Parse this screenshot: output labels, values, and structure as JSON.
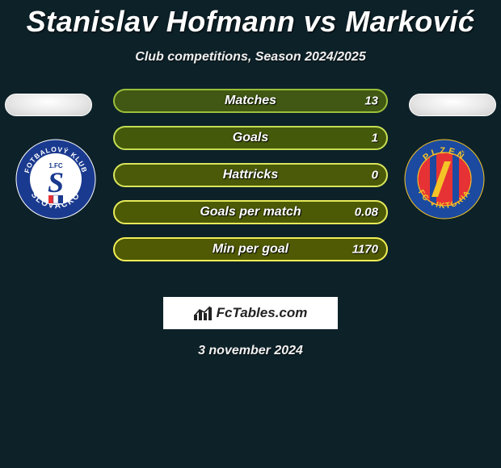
{
  "title": "Stanislav Hofmann vs Marković",
  "subtitle": "Club competitions, Season 2024/2025",
  "date": "3 november 2024",
  "brand": "FcTables.com",
  "background_color": "#0d2128",
  "title_color": "#ffffff",
  "title_fontsize": 36,
  "subtitle_fontsize": 16,
  "player_left": {
    "pill_fill": "#e8e8e8",
    "crest": {
      "outer_ring": "#1a3a8f",
      "ring_text_color": "#ffffff",
      "ring_text_top": "FOTBALOVÝ KLUB",
      "ring_text_bottom": "SLOVÁCKO",
      "inner_bg": "#ffffff",
      "letter": "S",
      "letter_color": "#1a3a8f",
      "sub_text": "1.FC",
      "stripe_colors": [
        "#e63235",
        "#ffffff",
        "#1a3a8f"
      ]
    }
  },
  "player_right": {
    "pill_fill": "#e8e8e8",
    "crest": {
      "outer_ring": "#1c4aa0",
      "ring_text_color": "#f4c426",
      "ring_text_top": "PLZEŇ",
      "ring_text_bottom": "FC VIKTORIA",
      "inner_bg": "#e63235",
      "stripes": "#1c4aa0",
      "accent": "#f4c426"
    }
  },
  "bars": {
    "height": 30,
    "border_radius": 15,
    "gap": 16,
    "label_color": "#ffffff",
    "label_fontsize": 16,
    "value_fontsize": 15,
    "rows": [
      {
        "label": "Matches",
        "left": "",
        "right": "13",
        "fill": "#405813",
        "border": "#9bbf3a"
      },
      {
        "label": "Goals",
        "left": "",
        "right": "1",
        "fill": "#45590a",
        "border": "#c4de53"
      },
      {
        "label": "Hattricks",
        "left": "",
        "right": "0",
        "fill": "#4a5a08",
        "border": "#d9e65b"
      },
      {
        "label": "Goals per match",
        "left": "",
        "right": "0.08",
        "fill": "#4c5a06",
        "border": "#e7ea5a"
      },
      {
        "label": "Min per goal",
        "left": "",
        "right": "1170",
        "fill": "#505a04",
        "border": "#f2ee57"
      }
    ]
  },
  "brand_box": {
    "border_color": "#ffffff",
    "bg": "#ffffff",
    "text_color": "#222222",
    "icon_color": "#222222"
  }
}
